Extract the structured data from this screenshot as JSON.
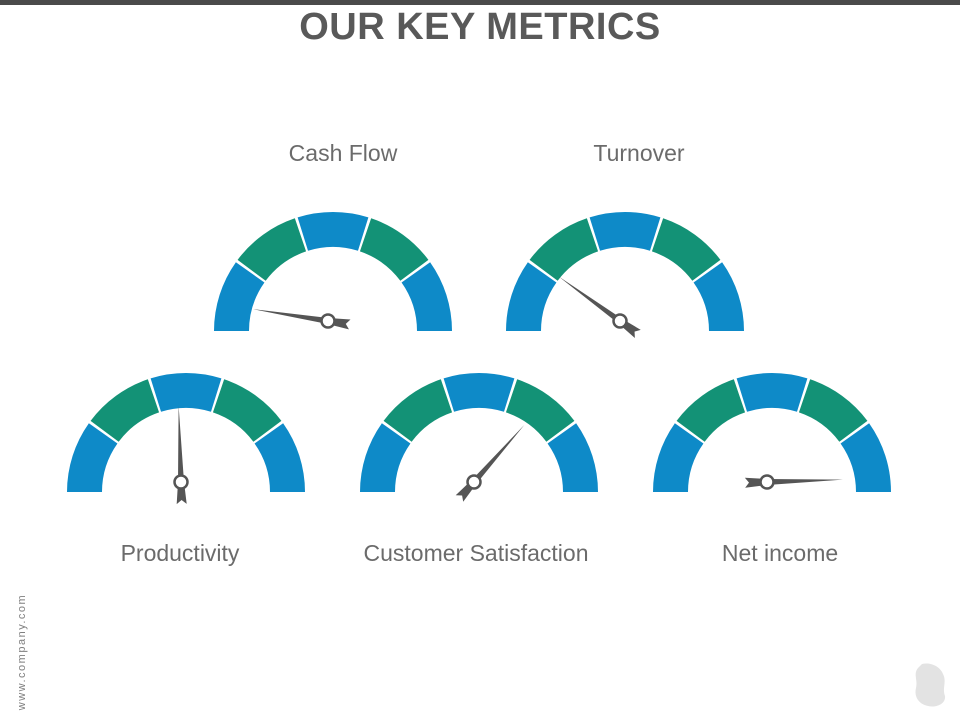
{
  "page": {
    "title": "OUR KEY METRICS",
    "footer_url": "www.company.com"
  },
  "colors": {
    "blue": "#0e8ac8",
    "green": "#139276",
    "needle": "#555555",
    "text": "#6b6b6b",
    "title": "#595959"
  },
  "gauges": [
    {
      "label": "Cash Flow",
      "needle_value": 0.05,
      "segment_colors": [
        "#0e8ac8",
        "#139276",
        "#0e8ac8",
        "#139276",
        "#0e8ac8"
      ]
    },
    {
      "label": "Turnover",
      "needle_value": 0.2,
      "segment_colors": [
        "#0e8ac8",
        "#139276",
        "#0e8ac8",
        "#139276",
        "#0e8ac8"
      ]
    },
    {
      "label": "Productivity",
      "needle_value": 0.49,
      "segment_colors": [
        "#0e8ac8",
        "#139276",
        "#0e8ac8",
        "#139276",
        "#0e8ac8"
      ]
    },
    {
      "label": "Customer Satisfaction",
      "needle_value": 0.73,
      "segment_colors": [
        "#0e8ac8",
        "#139276",
        "#0e8ac8",
        "#139276",
        "#0e8ac8"
      ]
    },
    {
      "label": "Net income",
      "needle_value": 0.99,
      "segment_colors": [
        "#0e8ac8",
        "#139276",
        "#0e8ac8",
        "#139276",
        "#0e8ac8"
      ]
    }
  ]
}
